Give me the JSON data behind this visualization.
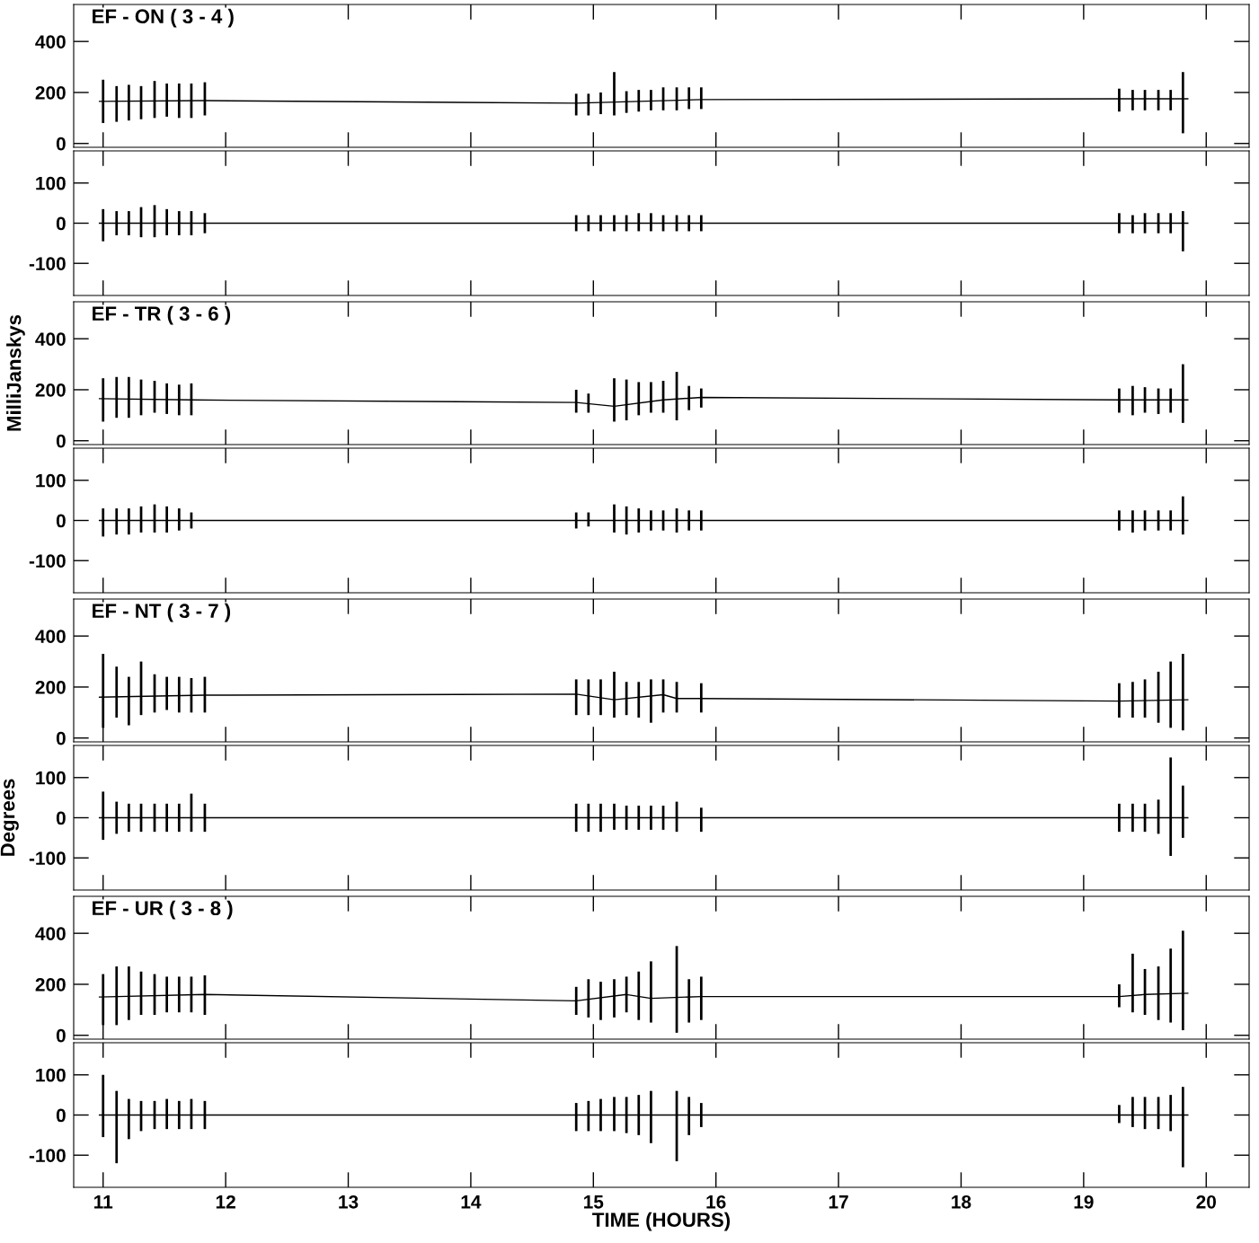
{
  "chart_data": [
    {
      "type": "bar",
      "title": "EF - ON ( 3 - 4 )",
      "xlim": [
        10.76,
        20.35
      ],
      "xticks": [
        11,
        12,
        13,
        14,
        15,
        16,
        17,
        18,
        19,
        20
      ],
      "ylim": [
        -15,
        545
      ],
      "yticks": [
        0,
        200,
        400
      ],
      "tick_labels": "y",
      "grid": false,
      "series": [
        {
          "color": "#000000",
          "x": [
            11.0,
            11.11,
            11.21,
            11.31,
            11.42,
            11.52,
            11.62,
            11.72,
            11.83,
            14.86,
            14.96,
            15.06,
            15.17,
            15.27,
            15.37,
            15.47,
            15.57,
            15.68,
            15.78,
            15.88,
            19.29,
            19.4,
            19.5,
            19.61,
            19.71,
            19.81
          ],
          "base": [
            80,
            85,
            90,
            95,
            100,
            105,
            100,
            100,
            110,
            110,
            110,
            115,
            110,
            120,
            125,
            130,
            130,
            130,
            135,
            135,
            125,
            130,
            130,
            130,
            130,
            40
          ],
          "values": [
            170,
            140,
            140,
            130,
            145,
            130,
            135,
            135,
            130,
            85,
            85,
            85,
            170,
            85,
            85,
            80,
            90,
            90,
            85,
            85,
            90,
            80,
            80,
            80,
            80,
            240
          ]
        },
        {
          "type": "line",
          "color": "#000000",
          "x": [
            10.97,
            11.83,
            14.86,
            15.88,
            19.29,
            19.85
          ],
          "values": [
            165,
            168,
            158,
            172,
            175,
            175
          ]
        }
      ]
    },
    {
      "type": "bar",
      "xlim": [
        10.76,
        20.35
      ],
      "xticks": [
        11,
        12,
        13,
        14,
        15,
        16,
        17,
        18,
        19,
        20
      ],
      "ylim": [
        -180,
        180
      ],
      "yticks": [
        -100,
        0,
        100
      ],
      "tick_labels": "y",
      "grid": false,
      "series": [
        {
          "color": "#000000",
          "x": [
            11.0,
            11.11,
            11.21,
            11.31,
            11.42,
            11.52,
            11.62,
            11.72,
            11.83,
            14.86,
            14.96,
            15.06,
            15.17,
            15.27,
            15.37,
            15.47,
            15.57,
            15.68,
            15.78,
            15.88,
            19.29,
            19.4,
            19.5,
            19.61,
            19.71,
            19.81
          ],
          "base": [
            -45,
            -30,
            -30,
            -35,
            -35,
            -30,
            -30,
            -30,
            -25,
            -20,
            -20,
            -20,
            -20,
            -20,
            -20,
            -20,
            -20,
            -20,
            -20,
            -20,
            -25,
            -25,
            -25,
            -25,
            -25,
            -70
          ],
          "values": [
            80,
            60,
            60,
            75,
            80,
            65,
            60,
            60,
            50,
            40,
            40,
            40,
            40,
            40,
            45,
            45,
            40,
            40,
            40,
            40,
            50,
            45,
            50,
            50,
            50,
            100
          ]
        },
        {
          "type": "line",
          "color": "#000000",
          "x": [
            10.97,
            19.85
          ],
          "values": [
            0,
            0
          ]
        }
      ]
    },
    {
      "type": "bar",
      "title": "EF - TR ( 3 - 6 )",
      "ylabel": "MilliJanskys",
      "xlim": [
        10.76,
        20.35
      ],
      "xticks": [
        11,
        12,
        13,
        14,
        15,
        16,
        17,
        18,
        19,
        20
      ],
      "ylim": [
        -15,
        545
      ],
      "yticks": [
        0,
        200,
        400
      ],
      "tick_labels": "y",
      "grid": false,
      "series": [
        {
          "color": "#000000",
          "x": [
            11.0,
            11.11,
            11.21,
            11.31,
            11.42,
            11.52,
            11.62,
            11.72,
            14.86,
            14.96,
            15.17,
            15.27,
            15.37,
            15.47,
            15.57,
            15.68,
            15.78,
            15.88,
            19.29,
            19.4,
            19.5,
            19.61,
            19.71,
            19.81
          ],
          "base": [
            75,
            90,
            90,
            100,
            110,
            105,
            100,
            100,
            110,
            110,
            75,
            80,
            100,
            110,
            110,
            80,
            120,
            130,
            110,
            100,
            110,
            105,
            110,
            70
          ],
          "values": [
            170,
            160,
            160,
            140,
            125,
            120,
            120,
            125,
            90,
            75,
            170,
            160,
            130,
            120,
            125,
            190,
            95,
            75,
            95,
            115,
            100,
            100,
            95,
            230
          ]
        },
        {
          "type": "line",
          "color": "#000000",
          "x": [
            10.97,
            11.72,
            14.86,
            15.17,
            15.57,
            15.88,
            19.29,
            19.85
          ],
          "values": [
            165,
            160,
            150,
            135,
            160,
            170,
            160,
            160
          ]
        }
      ]
    },
    {
      "type": "bar",
      "xlim": [
        10.76,
        20.35
      ],
      "xticks": [
        11,
        12,
        13,
        14,
        15,
        16,
        17,
        18,
        19,
        20
      ],
      "ylim": [
        -180,
        180
      ],
      "yticks": [
        -100,
        0,
        100
      ],
      "tick_labels": "y",
      "grid": false,
      "series": [
        {
          "color": "#000000",
          "x": [
            11.0,
            11.11,
            11.21,
            11.31,
            11.42,
            11.52,
            11.62,
            11.72,
            14.86,
            14.96,
            15.17,
            15.27,
            15.37,
            15.47,
            15.57,
            15.68,
            15.78,
            15.88,
            19.29,
            19.4,
            19.5,
            19.61,
            19.71,
            19.81
          ],
          "base": [
            -40,
            -35,
            -35,
            -30,
            -30,
            -30,
            -25,
            -20,
            -20,
            -15,
            -30,
            -35,
            -30,
            -25,
            -25,
            -30,
            -25,
            -25,
            -25,
            -30,
            -25,
            -25,
            -25,
            -35
          ],
          "values": [
            70,
            65,
            65,
            65,
            70,
            65,
            55,
            40,
            40,
            35,
            70,
            70,
            60,
            50,
            50,
            60,
            50,
            50,
            50,
            55,
            50,
            50,
            50,
            95
          ]
        },
        {
          "type": "line",
          "color": "#000000",
          "x": [
            10.97,
            19.85
          ],
          "values": [
            0,
            0
          ]
        }
      ]
    },
    {
      "type": "bar",
      "title": "EF - NT ( 3 - 7 )",
      "xlim": [
        10.76,
        20.35
      ],
      "xticks": [
        11,
        12,
        13,
        14,
        15,
        16,
        17,
        18,
        19,
        20
      ],
      "ylim": [
        -15,
        545
      ],
      "yticks": [
        0,
        200,
        400
      ],
      "tick_labels": "y",
      "grid": false,
      "series": [
        {
          "color": "#000000",
          "x": [
            11.0,
            11.11,
            11.21,
            11.31,
            11.42,
            11.52,
            11.62,
            11.72,
            11.83,
            14.86,
            14.96,
            15.06,
            15.17,
            15.27,
            15.37,
            15.47,
            15.57,
            15.68,
            15.88,
            19.29,
            19.4,
            19.5,
            19.61,
            19.71,
            19.81
          ],
          "base": [
            40,
            80,
            50,
            90,
            100,
            110,
            100,
            100,
            100,
            90,
            90,
            90,
            80,
            90,
            80,
            60,
            100,
            100,
            100,
            80,
            80,
            80,
            60,
            40,
            30
          ],
          "values": [
            290,
            200,
            190,
            210,
            150,
            130,
            140,
            135,
            140,
            140,
            140,
            140,
            180,
            130,
            140,
            170,
            130,
            120,
            115,
            135,
            140,
            150,
            200,
            260,
            300
          ]
        },
        {
          "type": "line",
          "color": "#000000",
          "x": [
            10.97,
            11.83,
            14.86,
            15.17,
            15.57,
            15.68,
            15.88,
            19.29,
            19.85
          ],
          "values": [
            160,
            168,
            172,
            150,
            170,
            155,
            155,
            145,
            150
          ]
        }
      ]
    },
    {
      "type": "bar",
      "ylabel": "Degrees",
      "xlim": [
        10.76,
        20.35
      ],
      "xticks": [
        11,
        12,
        13,
        14,
        15,
        16,
        17,
        18,
        19,
        20
      ],
      "ylim": [
        -180,
        180
      ],
      "yticks": [
        -100,
        0,
        100
      ],
      "tick_labels": "y",
      "grid": false,
      "series": [
        {
          "color": "#000000",
          "x": [
            11.0,
            11.11,
            11.21,
            11.31,
            11.42,
            11.52,
            11.62,
            11.72,
            11.83,
            14.86,
            14.96,
            15.06,
            15.17,
            15.27,
            15.37,
            15.47,
            15.57,
            15.68,
            15.88,
            19.29,
            19.4,
            19.5,
            19.61,
            19.71,
            19.81
          ],
          "base": [
            -55,
            -40,
            -35,
            -35,
            -35,
            -35,
            -35,
            -35,
            -35,
            -35,
            -35,
            -35,
            -30,
            -30,
            -30,
            -30,
            -30,
            -35,
            -35,
            -35,
            -35,
            -35,
            -40,
            -95,
            -50
          ],
          "values": [
            120,
            80,
            70,
            70,
            70,
            70,
            70,
            95,
            70,
            70,
            70,
            70,
            65,
            60,
            60,
            60,
            60,
            75,
            60,
            70,
            70,
            70,
            85,
            245,
            130
          ]
        },
        {
          "type": "line",
          "color": "#000000",
          "x": [
            10.97,
            19.85
          ],
          "values": [
            0,
            0
          ]
        }
      ]
    },
    {
      "type": "bar",
      "title": "EF - UR ( 3 - 8 )",
      "xlim": [
        10.76,
        20.35
      ],
      "xticks": [
        11,
        12,
        13,
        14,
        15,
        16,
        17,
        18,
        19,
        20
      ],
      "ylim": [
        -15,
        545
      ],
      "yticks": [
        0,
        200,
        400
      ],
      "tick_labels": "y",
      "grid": false,
      "series": [
        {
          "color": "#000000",
          "x": [
            11.0,
            11.11,
            11.21,
            11.31,
            11.42,
            11.52,
            11.62,
            11.72,
            11.83,
            14.86,
            14.96,
            15.06,
            15.17,
            15.27,
            15.37,
            15.47,
            15.68,
            15.78,
            15.88,
            19.29,
            19.4,
            19.5,
            19.61,
            19.71,
            19.81
          ],
          "base": [
            40,
            40,
            60,
            80,
            80,
            90,
            90,
            90,
            80,
            80,
            70,
            60,
            70,
            90,
            60,
            50,
            10,
            50,
            60,
            110,
            90,
            80,
            60,
            50,
            20
          ],
          "values": [
            200,
            230,
            210,
            170,
            160,
            140,
            140,
            140,
            155,
            110,
            150,
            150,
            150,
            140,
            190,
            240,
            340,
            170,
            170,
            90,
            230,
            180,
            210,
            290,
            390
          ]
        },
        {
          "type": "line",
          "color": "#000000",
          "x": [
            10.97,
            11.83,
            14.86,
            15.27,
            15.47,
            15.88,
            19.29,
            19.5,
            19.85
          ],
          "values": [
            150,
            160,
            135,
            160,
            145,
            152,
            152,
            160,
            165
          ]
        }
      ]
    },
    {
      "type": "bar",
      "xlabel": "TIME (HOURS)",
      "xlim": [
        10.76,
        20.35
      ],
      "xticks": [
        11,
        12,
        13,
        14,
        15,
        16,
        17,
        18,
        19,
        20
      ],
      "ylim": [
        -180,
        180
      ],
      "yticks": [
        -100,
        0,
        100
      ],
      "grid": false,
      "series": [
        {
          "color": "#000000",
          "x": [
            11.0,
            11.11,
            11.21,
            11.31,
            11.42,
            11.52,
            11.62,
            11.72,
            11.83,
            14.86,
            14.96,
            15.06,
            15.17,
            15.27,
            15.37,
            15.47,
            15.68,
            15.78,
            15.88,
            19.29,
            19.4,
            19.5,
            19.61,
            19.71,
            19.81
          ],
          "base": [
            -55,
            -120,
            -60,
            -40,
            -35,
            -35,
            -35,
            -35,
            -35,
            -40,
            -40,
            -40,
            -40,
            -45,
            -50,
            -70,
            -115,
            -50,
            -30,
            -20,
            -30,
            -35,
            -35,
            -40,
            -130
          ],
          "values": [
            155,
            180,
            100,
            75,
            70,
            75,
            70,
            75,
            70,
            70,
            75,
            80,
            85,
            90,
            100,
            130,
            175,
            95,
            60,
            45,
            75,
            80,
            80,
            90,
            200
          ]
        },
        {
          "type": "line",
          "color": "#000000",
          "x": [
            10.97,
            19.85
          ],
          "values": [
            0,
            0
          ]
        }
      ]
    }
  ]
}
